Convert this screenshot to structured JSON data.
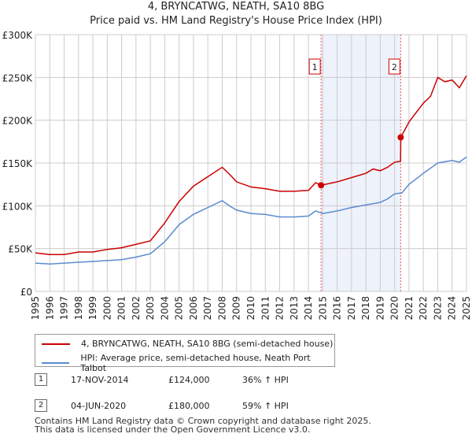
{
  "title": "4, BRYNCATWG, NEATH, SA10 8BG",
  "subtitle": "Price paid vs. HM Land Registry's House Price Index (HPI)",
  "chart_data": {
    "type": "line",
    "xlim": [
      1995,
      2025.2
    ],
    "ylim": [
      0,
      300000
    ],
    "yticks": [
      {
        "v": 0,
        "label": "£0"
      },
      {
        "v": 50000,
        "label": "£50K"
      },
      {
        "v": 100000,
        "label": "£100K"
      },
      {
        "v": 150000,
        "label": "£150K"
      },
      {
        "v": 200000,
        "label": "£200K"
      },
      {
        "v": 250000,
        "label": "£250K"
      },
      {
        "v": 300000,
        "label": "£300K"
      }
    ],
    "xticks": [
      "1995",
      "1996",
      "1997",
      "1998",
      "1999",
      "2000",
      "2001",
      "2002",
      "2003",
      "2004",
      "2005",
      "2006",
      "2007",
      "2008",
      "2009",
      "2010",
      "2011",
      "2012",
      "2013",
      "2014",
      "2015",
      "2016",
      "2017",
      "2018",
      "2019",
      "2020",
      "2021",
      "2022",
      "2023",
      "2024",
      "2025"
    ],
    "series": [
      {
        "name": "4, BRYNCATWG, NEATH, SA10 8BG (semi-detached house)",
        "color": "#cc0000",
        "x": [
          1995,
          1996,
          1997,
          1998,
          1999,
          2000,
          2001,
          2002,
          2003,
          2004,
          2005,
          2006,
          2007,
          2008,
          2008.5,
          2009,
          2010,
          2011,
          2012,
          2013,
          2014,
          2014.5,
          2014.88,
          2016,
          2017,
          2018,
          2018.5,
          2019,
          2019.5,
          2020,
          2020.41,
          2020.43,
          2021,
          2022,
          2022.5,
          2023,
          2023.5,
          2024,
          2024.5,
          2025
        ],
        "y": [
          45000,
          43000,
          43000,
          46000,
          46000,
          49000,
          51000,
          55000,
          59000,
          80000,
          105000,
          123000,
          134000,
          145000,
          137000,
          128000,
          122000,
          120000,
          117000,
          117000,
          118000,
          127000,
          124000,
          128000,
          133000,
          138000,
          143000,
          141000,
          145000,
          151000,
          152000,
          180000,
          198000,
          220000,
          228000,
          250000,
          245000,
          247000,
          238000,
          252000
        ]
      },
      {
        "name": "HPI: Average price, semi-detached house, Neath Port Talbot",
        "color": "#5b8bd0",
        "x": [
          1995,
          1996,
          1997,
          1998,
          1999,
          2000,
          2001,
          2002,
          2003,
          2004,
          2005,
          2006,
          2007,
          2008,
          2008.5,
          2009,
          2010,
          2011,
          2012,
          2013,
          2014,
          2014.5,
          2015,
          2016,
          2017,
          2018,
          2019,
          2019.5,
          2020,
          2020.5,
          2021,
          2022,
          2023,
          2024,
          2024.5,
          2025
        ],
        "y": [
          33000,
          32000,
          33000,
          34000,
          35000,
          36000,
          37000,
          40000,
          44000,
          58000,
          78000,
          90000,
          98000,
          106000,
          100000,
          95000,
          91000,
          90000,
          87000,
          87000,
          88000,
          94000,
          91000,
          94000,
          98000,
          101000,
          104000,
          108000,
          114000,
          115000,
          125000,
          138000,
          150000,
          153000,
          151000,
          157000
        ]
      }
    ],
    "annotations": [
      {
        "label": "1",
        "x": 2014.88,
        "y": 124000
      },
      {
        "label": "2",
        "x": 2020.42,
        "y": 180000
      }
    ],
    "shade": [
      2014.88,
      2020.42
    ]
  },
  "legend": [
    "4, BRYNCATWG, NEATH, SA10 8BG (semi-detached house)",
    "HPI: Average price, semi-detached house, Neath Port Talbot"
  ],
  "transactions": [
    {
      "num": "1",
      "date": "17-NOV-2014",
      "price": "£124,000",
      "hpi": "36% ↑ HPI"
    },
    {
      "num": "2",
      "date": "04-JUN-2020",
      "price": "£180,000",
      "hpi": "59% ↑ HPI"
    }
  ],
  "footer": [
    "Contains HM Land Registry data © Crown copyright and database right 2025.",
    "This data is licensed under the Open Government Licence v3.0."
  ]
}
